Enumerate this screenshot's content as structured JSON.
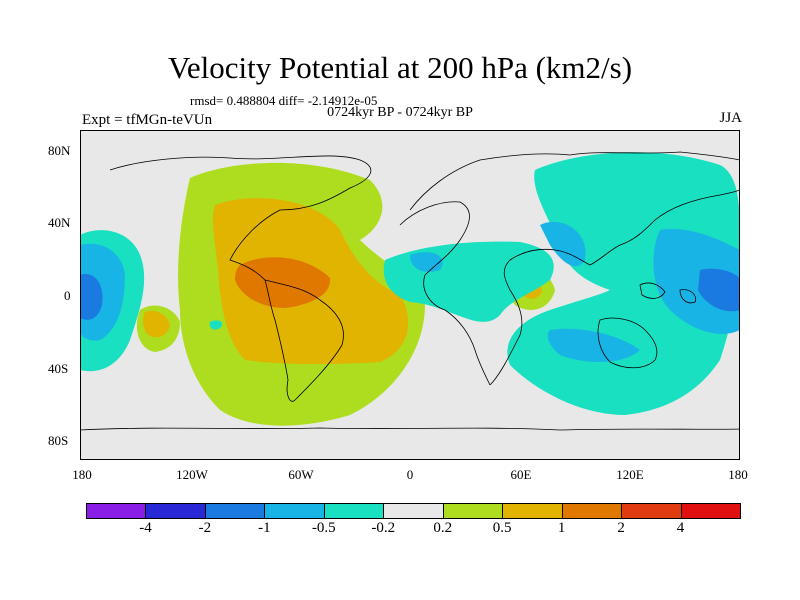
{
  "title": "Velocity Potential at 200 hPa (km2/s)",
  "stats": "rmsd= 0.488804 diff= -2.14912e-05",
  "period": "0724kyr BP - 0724kyr BP",
  "expt": "Expt = tfMGn-teVUn",
  "season": "JJA",
  "y_axis_labels": [
    "80N",
    "40N",
    "0",
    "40S",
    "80S"
  ],
  "x_axis_labels": [
    "180",
    "120W",
    "60W",
    "0",
    "60E",
    "120E",
    "180"
  ],
  "colorbar": {
    "colors": [
      "#8b1ee6",
      "#2828d6",
      "#1a7ae0",
      "#18b4e6",
      "#18e0c0",
      "#e8e8e8",
      "#aedd20",
      "#e0b400",
      "#e07800",
      "#e03c10",
      "#e01010"
    ],
    "labels": [
      "-4",
      "-2",
      "-1",
      "-0.5",
      "-0.2",
      "0.2",
      "0.5",
      "1",
      "2",
      "4"
    ]
  }
}
